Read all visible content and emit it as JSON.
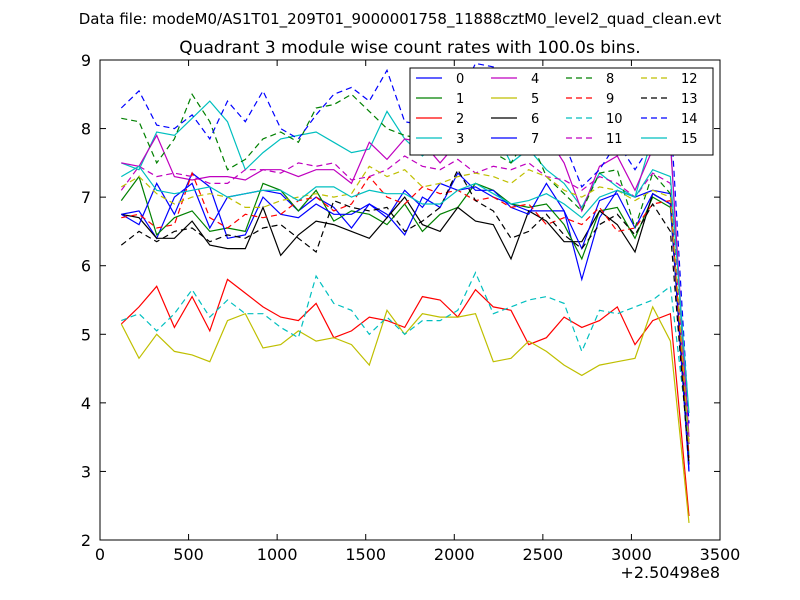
{
  "figure": {
    "supertitle": "Data file: modeM0/AS1T01_209T01_9000001758_11888cztM0_level2_quad_clean.evt",
    "x_offset_label": "+2.50498e8"
  },
  "chart_data": {
    "type": "line",
    "title": "Quadrant 3 module wise count rates with 100.0s bins.",
    "xlabel": "",
    "ylabel": "",
    "xlim": [
      0,
      3500
    ],
    "ylim": [
      2,
      9
    ],
    "xticks": [
      0,
      500,
      1000,
      1500,
      2000,
      2500,
      3000,
      3500
    ],
    "yticks": [
      2,
      3,
      4,
      5,
      6,
      7,
      8,
      9
    ],
    "xtick_labels": [
      "0",
      "500",
      "1000",
      "1500",
      "2000",
      "2500",
      "3000",
      "3500"
    ],
    "ytick_labels": [
      "2",
      "3",
      "4",
      "5",
      "6",
      "7",
      "8",
      "9"
    ],
    "grid": false,
    "legend_position": "top-right",
    "x": [
      120,
      220,
      320,
      420,
      520,
      620,
      720,
      820,
      920,
      1020,
      1120,
      1220,
      1320,
      1420,
      1520,
      1620,
      1720,
      1820,
      1920,
      2020,
      2120,
      2220,
      2320,
      2420,
      2520,
      2620,
      2720,
      2820,
      2920,
      3020,
      3120,
      3220,
      3325
    ],
    "series": [
      {
        "name": "0",
        "color": "#0000ff",
        "dash": "solid",
        "values": [
          6.75,
          6.8,
          6.4,
          7.0,
          7.2,
          6.55,
          7.0,
          7.05,
          7.1,
          7.05,
          6.8,
          7.0,
          6.85,
          6.55,
          6.9,
          6.7,
          7.1,
          6.85,
          7.2,
          7.1,
          7.15,
          7.0,
          6.9,
          6.8,
          6.8,
          6.8,
          5.8,
          6.7,
          7.1,
          7.0,
          7.1,
          7.05,
          3.0
        ]
      },
      {
        "name": "1",
        "color": "#008000",
        "dash": "solid",
        "values": [
          6.95,
          7.3,
          6.45,
          6.7,
          6.8,
          6.5,
          6.55,
          6.5,
          7.2,
          7.1,
          6.8,
          7.1,
          6.65,
          6.8,
          6.75,
          6.6,
          6.9,
          6.5,
          6.75,
          6.85,
          7.2,
          7.1,
          6.9,
          6.85,
          6.9,
          6.6,
          6.1,
          6.8,
          6.85,
          6.4,
          7.0,
          6.85,
          3.2
        ]
      },
      {
        "name": "2",
        "color": "#ff0000",
        "dash": "solid",
        "values": [
          5.15,
          5.4,
          5.7,
          5.1,
          5.55,
          5.05,
          5.8,
          5.6,
          5.4,
          5.25,
          5.2,
          5.45,
          4.95,
          5.05,
          5.25,
          5.2,
          5.1,
          5.55,
          5.5,
          5.25,
          5.65,
          5.4,
          5.35,
          4.85,
          4.95,
          5.25,
          5.1,
          5.2,
          5.4,
          4.85,
          5.2,
          5.3,
          2.35
        ]
      },
      {
        "name": "3",
        "color": "#00bfbf",
        "dash": "solid",
        "values": [
          7.5,
          7.4,
          7.95,
          7.9,
          8.15,
          8.4,
          8.1,
          7.4,
          7.65,
          7.85,
          7.9,
          7.95,
          7.8,
          7.65,
          7.7,
          8.25,
          7.85,
          7.6,
          7.8,
          7.95,
          7.95,
          8.0,
          7.5,
          7.7,
          7.4,
          7.2,
          6.85,
          7.35,
          7.15,
          7.0,
          7.9,
          7.85,
          3.2
        ]
      },
      {
        "name": "4",
        "color": "#bf00bf",
        "dash": "solid",
        "values": [
          7.5,
          7.45,
          7.9,
          7.3,
          7.25,
          7.3,
          7.3,
          7.25,
          7.4,
          7.4,
          7.3,
          7.4,
          7.4,
          7.2,
          7.8,
          7.55,
          7.85,
          7.8,
          7.5,
          7.8,
          7.95,
          7.95,
          8.05,
          8.0,
          7.9,
          7.5,
          6.8,
          7.45,
          7.6,
          7.1,
          7.7,
          7.8,
          3.5
        ]
      },
      {
        "name": "5",
        "color": "#bfbf00",
        "dash": "solid",
        "values": [
          5.15,
          4.65,
          5.0,
          4.75,
          4.7,
          4.6,
          5.2,
          5.3,
          4.8,
          4.85,
          5.05,
          4.9,
          4.95,
          4.85,
          4.55,
          5.35,
          5.0,
          5.3,
          5.25,
          5.25,
          5.3,
          4.6,
          4.65,
          4.9,
          4.75,
          4.55,
          4.4,
          4.55,
          4.6,
          4.65,
          5.4,
          4.9,
          2.25
        ]
      },
      {
        "name": "6",
        "color": "#000000",
        "dash": "solid",
        "values": [
          6.75,
          6.7,
          6.4,
          6.4,
          6.65,
          6.3,
          6.25,
          6.25,
          6.85,
          6.15,
          6.45,
          6.65,
          6.6,
          6.5,
          6.4,
          6.7,
          7.0,
          6.6,
          6.5,
          6.85,
          6.65,
          6.6,
          6.1,
          6.8,
          6.65,
          6.35,
          6.35,
          6.8,
          6.6,
          6.2,
          7.05,
          6.9,
          3.1
        ]
      },
      {
        "name": "7",
        "color": "#0000ff",
        "dash": "solid",
        "values": [
          6.75,
          6.6,
          7.2,
          6.75,
          7.35,
          7.15,
          6.4,
          6.45,
          7.0,
          6.75,
          6.7,
          6.9,
          6.75,
          6.75,
          6.9,
          6.75,
          6.45,
          7.0,
          6.85,
          7.35,
          7.1,
          7.1,
          6.85,
          6.75,
          7.2,
          6.8,
          6.25,
          6.95,
          7.05,
          6.55,
          7.05,
          6.9,
          3.0
        ]
      },
      {
        "name": "8",
        "color": "#008000",
        "dash": "dashed",
        "values": [
          8.15,
          8.1,
          7.5,
          7.85,
          8.5,
          8.1,
          7.4,
          7.55,
          7.85,
          7.95,
          7.8,
          8.3,
          8.35,
          8.5,
          8.25,
          8.0,
          7.9,
          7.85,
          8.1,
          8.2,
          7.8,
          7.65,
          7.5,
          7.9,
          7.3,
          7.05,
          6.8,
          7.35,
          7.4,
          6.55,
          7.35,
          7.05,
          3.4
        ]
      },
      {
        "name": "9",
        "color": "#ff0000",
        "dash": "dashed",
        "values": [
          6.7,
          6.75,
          6.55,
          6.6,
          7.35,
          6.7,
          6.55,
          6.75,
          6.7,
          6.75,
          6.95,
          7.0,
          6.8,
          6.9,
          7.3,
          7.0,
          6.9,
          7.15,
          7.05,
          7.1,
          6.95,
          7.0,
          6.85,
          6.9,
          6.6,
          6.7,
          6.6,
          6.85,
          6.5,
          6.55,
          6.9,
          6.95,
          3.2
        ]
      },
      {
        "name": "10",
        "color": "#00bfbf",
        "dash": "dashed",
        "values": [
          5.2,
          5.3,
          5.05,
          5.3,
          5.65,
          5.25,
          5.5,
          5.3,
          5.3,
          5.1,
          4.95,
          5.85,
          5.45,
          5.35,
          5.0,
          5.25,
          5.0,
          5.2,
          5.2,
          5.35,
          5.9,
          5.3,
          5.4,
          5.5,
          5.55,
          5.45,
          4.75,
          5.35,
          5.3,
          5.4,
          5.5,
          5.7,
          3.4
        ]
      },
      {
        "name": "11",
        "color": "#bf00bf",
        "dash": "dashed",
        "values": [
          7.1,
          7.45,
          7.3,
          7.35,
          7.3,
          7.2,
          7.2,
          7.4,
          7.4,
          7.35,
          7.5,
          7.45,
          7.5,
          7.25,
          7.3,
          7.4,
          7.6,
          7.45,
          7.4,
          7.55,
          7.35,
          7.45,
          7.4,
          7.5,
          7.3,
          7.25,
          7.1,
          7.3,
          7.2,
          7.0,
          7.35,
          7.2,
          3.4
        ]
      },
      {
        "name": "12",
        "color": "#bfbf00",
        "dash": "dashed",
        "values": [
          7.15,
          7.3,
          7.05,
          6.9,
          7.0,
          7.05,
          7.0,
          6.85,
          6.85,
          6.95,
          7.0,
          7.05,
          7.0,
          7.05,
          7.45,
          7.3,
          7.4,
          7.15,
          7.2,
          7.3,
          7.35,
          7.3,
          7.2,
          7.4,
          7.3,
          7.1,
          7.0,
          7.15,
          7.1,
          6.95,
          7.1,
          7.0,
          3.4
        ]
      },
      {
        "name": "13",
        "color": "#000000",
        "dash": "dashed",
        "values": [
          6.3,
          6.5,
          6.35,
          6.5,
          6.55,
          6.35,
          6.45,
          6.4,
          6.55,
          6.6,
          6.4,
          6.2,
          6.95,
          6.85,
          6.8,
          6.85,
          6.5,
          6.65,
          6.85,
          7.4,
          6.95,
          6.8,
          6.4,
          6.5,
          6.75,
          6.45,
          6.25,
          6.6,
          6.75,
          6.45,
          6.9,
          6.5,
          3.1
        ]
      },
      {
        "name": "14",
        "color": "#0000ff",
        "dash": "dashed",
        "values": [
          8.3,
          8.55,
          8.05,
          8.0,
          8.2,
          7.85,
          8.4,
          8.1,
          8.55,
          8.0,
          7.85,
          8.2,
          8.5,
          8.6,
          8.4,
          8.85,
          8.1,
          8.05,
          8.65,
          8.4,
          8.95,
          8.9,
          8.3,
          8.15,
          8.05,
          7.8,
          7.15,
          7.4,
          7.8,
          7.4,
          7.8,
          8.25,
          3.7
        ]
      },
      {
        "name": "15",
        "color": "#00bfbf",
        "dash": "solid",
        "values": [
          7.3,
          7.45,
          7.1,
          7.05,
          7.1,
          7.15,
          7.0,
          7.05,
          7.1,
          7.1,
          6.95,
          7.15,
          7.15,
          7.0,
          7.1,
          7.05,
          7.05,
          6.9,
          6.9,
          7.1,
          7.2,
          7.05,
          6.9,
          6.95,
          7.05,
          6.9,
          6.7,
          7.0,
          7.1,
          7.0,
          7.4,
          7.3,
          3.85
        ]
      }
    ]
  }
}
